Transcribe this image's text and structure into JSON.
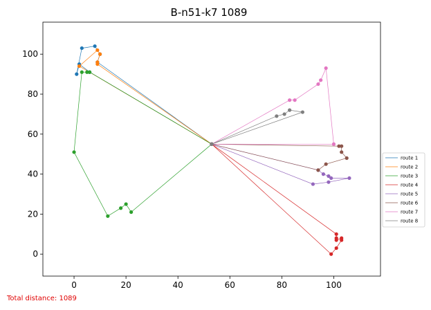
{
  "chart_data": {
    "type": "line",
    "title": "B-n51-k7 1089",
    "xlabel": "",
    "ylabel": "",
    "xlim": [
      -12,
      118
    ],
    "ylim": [
      -11,
      116
    ],
    "xticks": [
      0,
      20,
      40,
      60,
      80,
      100
    ],
    "yticks": [
      0,
      20,
      40,
      60,
      80,
      100
    ],
    "grid": false,
    "legend_position": "right",
    "depot": {
      "x": 53,
      "y": 55
    },
    "series": [
      {
        "name": "route 1",
        "color": "#1f77b4",
        "points": [
          [
            53,
            55
          ],
          [
            6,
            91
          ],
          [
            2,
            95
          ],
          [
            1,
            90
          ],
          [
            3,
            103
          ],
          [
            8,
            104
          ],
          [
            10,
            100
          ],
          [
            9,
            96
          ],
          [
            53,
            55
          ]
        ]
      },
      {
        "name": "route 2",
        "color": "#ff7f0e",
        "points": [
          [
            53,
            55
          ],
          [
            9,
            95
          ],
          [
            9,
            96
          ],
          [
            10,
            100
          ],
          [
            9,
            102
          ],
          [
            2,
            94
          ],
          [
            53,
            55
          ]
        ]
      },
      {
        "name": "route 3",
        "color": "#2ca02c",
        "points": [
          [
            53,
            55
          ],
          [
            6,
            91
          ],
          [
            5,
            91
          ],
          [
            3,
            91
          ],
          [
            0,
            51
          ],
          [
            13,
            19
          ],
          [
            18,
            23
          ],
          [
            20,
            25
          ],
          [
            22,
            21
          ],
          [
            53,
            55
          ]
        ]
      },
      {
        "name": "route 4",
        "color": "#d62728",
        "points": [
          [
            53,
            55
          ],
          [
            99,
            0
          ],
          [
            101,
            3
          ],
          [
            103,
            7
          ],
          [
            103,
            8
          ],
          [
            101,
            7
          ],
          [
            101,
            8
          ],
          [
            101,
            10
          ],
          [
            53,
            55
          ]
        ]
      },
      {
        "name": "route 5",
        "color": "#9467bd",
        "points": [
          [
            53,
            55
          ],
          [
            94,
            42
          ],
          [
            96,
            40
          ],
          [
            98,
            39
          ],
          [
            99,
            38
          ],
          [
            106,
            38
          ],
          [
            98,
            36
          ],
          [
            92,
            35
          ],
          [
            53,
            55
          ]
        ]
      },
      {
        "name": "route 6",
        "color": "#8c564b",
        "points": [
          [
            53,
            55
          ],
          [
            102,
            54
          ],
          [
            103,
            54
          ],
          [
            103,
            51
          ],
          [
            105,
            48
          ],
          [
            97,
            45
          ],
          [
            94,
            42
          ],
          [
            53,
            55
          ]
        ]
      },
      {
        "name": "route 7",
        "color": "#e377c2",
        "points": [
          [
            53,
            55
          ],
          [
            83,
            77
          ],
          [
            85,
            77
          ],
          [
            94,
            85
          ],
          [
            95,
            87
          ],
          [
            97,
            93
          ],
          [
            100,
            55
          ],
          [
            53,
            55
          ]
        ]
      },
      {
        "name": "route 8",
        "color": "#7f7f7f",
        "points": [
          [
            53,
            55
          ],
          [
            78,
            69
          ],
          [
            81,
            70
          ],
          [
            83,
            72
          ],
          [
            88,
            71
          ],
          [
            53,
            55
          ]
        ]
      }
    ]
  },
  "footer_text": "Total distance: 1089"
}
